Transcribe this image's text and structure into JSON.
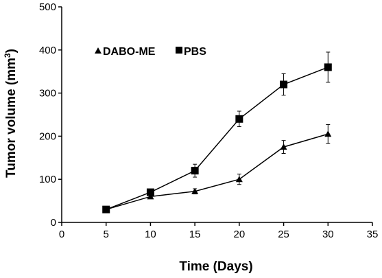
{
  "chart_data": {
    "type": "line",
    "xlabel": "Time (Days)",
    "ylabel_main": "Tumor volume (mm",
    "ylabel_sup": "3",
    "ylabel_close": ")",
    "xlim": [
      0,
      35
    ],
    "ylim": [
      0,
      500
    ],
    "xticks": [
      0,
      5,
      10,
      15,
      20,
      25,
      30,
      35
    ],
    "yticks": [
      0,
      100,
      200,
      300,
      400,
      500
    ],
    "grid": false,
    "legend_position": "top-left",
    "series": [
      {
        "name": "DABO-ME",
        "marker": "triangle",
        "x": [
          5,
          10,
          15,
          20,
          25,
          30
        ],
        "y": [
          30,
          60,
          72,
          100,
          175,
          205
        ],
        "error": [
          0,
          5,
          6,
          12,
          15,
          22
        ]
      },
      {
        "name": "PBS",
        "marker": "square",
        "x": [
          5,
          10,
          15,
          20,
          25,
          30
        ],
        "y": [
          30,
          70,
          120,
          240,
          320,
          360
        ],
        "error": [
          0,
          5,
          15,
          18,
          25,
          35
        ]
      }
    ],
    "colors": {
      "line": "#000000",
      "marker": "#000000"
    }
  }
}
